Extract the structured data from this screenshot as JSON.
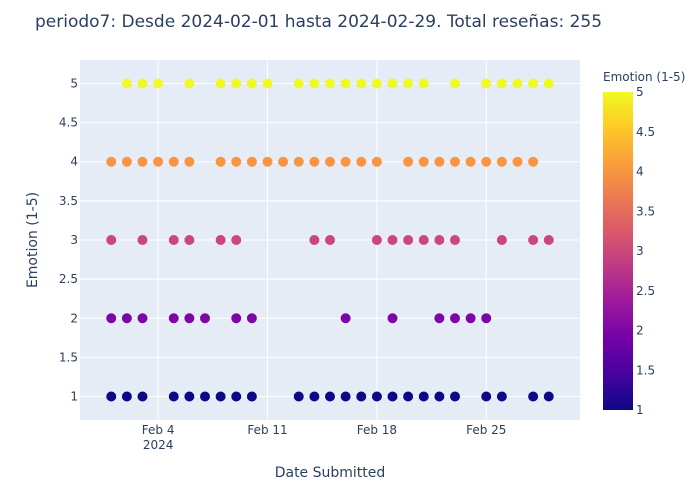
{
  "chart_data": {
    "type": "scatter",
    "title": "periodo7: Desde 2024-02-01 hasta 2024-02-29. Total reseñas: 255",
    "xlabel": "Date Submitted",
    "ylabel": "Emotion (1-5)",
    "x_range": [
      "2024-01-30",
      "2024-03-02"
    ],
    "y_range": [
      0.7,
      5.3
    ],
    "x_ticks": [
      {
        "date": "2024-02-04",
        "label": "Feb 4",
        "sublabel": "2024"
      },
      {
        "date": "2024-02-11",
        "label": "Feb 11",
        "sublabel": ""
      },
      {
        "date": "2024-02-18",
        "label": "Feb 18",
        "sublabel": ""
      },
      {
        "date": "2024-02-25",
        "label": "Feb 25",
        "sublabel": ""
      }
    ],
    "y_ticks": [
      1,
      1.5,
      2,
      2.5,
      3,
      3.5,
      4,
      4.5,
      5
    ],
    "grid": true,
    "colorbar": {
      "title": "Emotion (1-5)",
      "min": 1,
      "max": 5,
      "ticks": [
        1,
        1.5,
        2,
        2.5,
        3,
        3.5,
        4,
        4.5,
        5
      ],
      "colorscale": [
        "#0d0887",
        "#46039f",
        "#7201a8",
        "#9c179e",
        "#bd3786",
        "#d8576b",
        "#ed7953",
        "#fb9f3a",
        "#fdca26",
        "#f0f921"
      ]
    },
    "points": {
      "5": [
        "2024-02-02",
        "2024-02-03",
        "2024-02-04",
        "2024-02-06",
        "2024-02-08",
        "2024-02-09",
        "2024-02-10",
        "2024-02-11",
        "2024-02-13",
        "2024-02-14",
        "2024-02-15",
        "2024-02-16",
        "2024-02-17",
        "2024-02-18",
        "2024-02-19",
        "2024-02-20",
        "2024-02-21",
        "2024-02-23",
        "2024-02-25",
        "2024-02-26",
        "2024-02-27",
        "2024-02-28",
        "2024-02-29"
      ],
      "4": [
        "2024-02-01",
        "2024-02-02",
        "2024-02-03",
        "2024-02-04",
        "2024-02-05",
        "2024-02-06",
        "2024-02-08",
        "2024-02-09",
        "2024-02-10",
        "2024-02-11",
        "2024-02-12",
        "2024-02-13",
        "2024-02-14",
        "2024-02-15",
        "2024-02-16",
        "2024-02-17",
        "2024-02-18",
        "2024-02-20",
        "2024-02-21",
        "2024-02-22",
        "2024-02-23",
        "2024-02-24",
        "2024-02-25",
        "2024-02-26",
        "2024-02-27",
        "2024-02-28"
      ],
      "3": [
        "2024-02-01",
        "2024-02-03",
        "2024-02-05",
        "2024-02-06",
        "2024-02-08",
        "2024-02-09",
        "2024-02-14",
        "2024-02-15",
        "2024-02-18",
        "2024-02-19",
        "2024-02-20",
        "2024-02-21",
        "2024-02-22",
        "2024-02-23",
        "2024-02-26",
        "2024-02-28",
        "2024-02-29"
      ],
      "2": [
        "2024-02-01",
        "2024-02-02",
        "2024-02-03",
        "2024-02-05",
        "2024-02-06",
        "2024-02-07",
        "2024-02-09",
        "2024-02-10",
        "2024-02-16",
        "2024-02-19",
        "2024-02-22",
        "2024-02-23",
        "2024-02-24",
        "2024-02-25"
      ],
      "1": [
        "2024-02-01",
        "2024-02-02",
        "2024-02-03",
        "2024-02-05",
        "2024-02-06",
        "2024-02-07",
        "2024-02-08",
        "2024-02-09",
        "2024-02-10",
        "2024-02-13",
        "2024-02-14",
        "2024-02-15",
        "2024-02-16",
        "2024-02-17",
        "2024-02-18",
        "2024-02-19",
        "2024-02-20",
        "2024-02-21",
        "2024-02-22",
        "2024-02-23",
        "2024-02-25",
        "2024-02-26",
        "2024-02-28",
        "2024-02-29"
      ]
    }
  }
}
